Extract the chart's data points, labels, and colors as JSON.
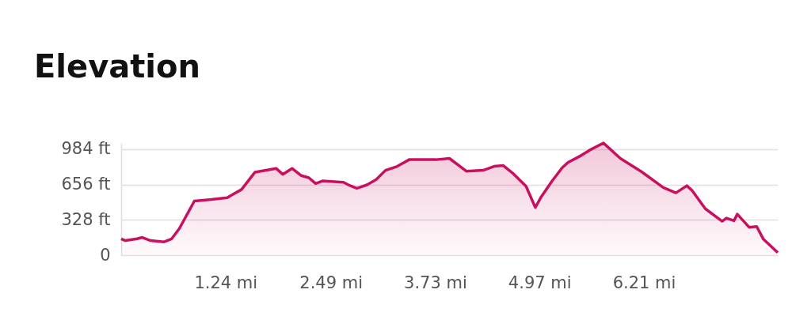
{
  "chart_data": {
    "type": "area",
    "title": "Elevation",
    "x": [
      0,
      0.05,
      0.19,
      0.25,
      0.35,
      0.51,
      0.6,
      0.69,
      0.87,
      1.07,
      1.26,
      1.32,
      1.43,
      1.59,
      1.84,
      1.92,
      2.03,
      2.14,
      2.23,
      2.31,
      2.39,
      2.64,
      2.7,
      2.8,
      2.92,
      3.03,
      3.14,
      3.28,
      3.42,
      3.74,
      3.9,
      4.1,
      4.3,
      4.43,
      4.54,
      4.65,
      4.81,
      4.92,
      4.99,
      5.12,
      5.24,
      5.31,
      5.46,
      5.56,
      5.73,
      5.93,
      6.18,
      6.44,
      6.59,
      6.72,
      6.78,
      6.94,
      7.14,
      7.19,
      7.28,
      7.32,
      7.46,
      7.55,
      7.63,
      7.8
    ],
    "series": [
      {
        "color": "#c8105e",
        "values": [
          152,
          135,
          152,
          165,
          135,
          123,
          152,
          246,
          503,
          517,
          534,
          562,
          610,
          771,
          806,
          751,
          806,
          739,
          719,
          665,
          689,
          677,
          653,
          621,
          653,
          702,
          788,
          825,
          887,
          887,
          899,
          780,
          788,
          825,
          832,
          763,
          640,
          443,
          542,
          690,
          813,
          862,
          924,
          973,
          1042,
          899,
          776,
          628,
          579,
          645,
          603,
          431,
          315,
          344,
          320,
          381,
          259,
          266,
          148,
          24
        ]
      }
    ],
    "xlim": [
      0,
      7.8
    ],
    "ylim": [
      0,
      1042
    ],
    "xticks": [
      {
        "value": 1.24,
        "label": "1.24 mi"
      },
      {
        "value": 2.49,
        "label": "2.49 mi"
      },
      {
        "value": 3.73,
        "label": "3.73 mi"
      },
      {
        "value": 4.97,
        "label": "4.97 mi"
      },
      {
        "value": 6.21,
        "label": "6.21 mi"
      }
    ],
    "yticks": [
      0,
      {
        "value": 328,
        "label": "328 ft"
      },
      {
        "value": 656,
        "label": "656 ft"
      },
      {
        "value": 984,
        "label": "984 ft"
      }
    ],
    "grid": "y"
  }
}
